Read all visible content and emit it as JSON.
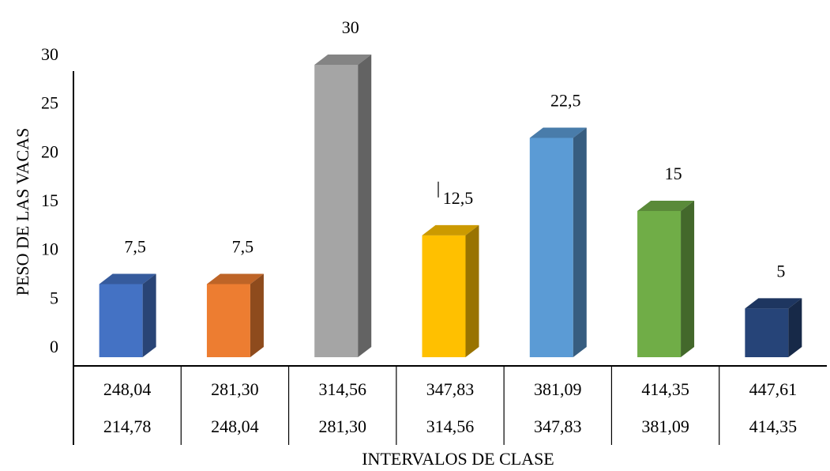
{
  "chart_data": {
    "type": "bar",
    "style": "3d-column",
    "title": "",
    "xlabel": "INTERVALOS DE CLASE",
    "ylabel": "PESO DE LAS VACAS",
    "ylim": [
      0,
      30
    ],
    "yticks": [
      "0",
      "5",
      "10",
      "15",
      "20",
      "25",
      "30"
    ],
    "grid": false,
    "legend": "none",
    "categories": [
      {
        "upper": "248,04",
        "lower": "214,78"
      },
      {
        "upper": "281,30",
        "lower": "248,04"
      },
      {
        "upper": "314,56",
        "lower": "281,30"
      },
      {
        "upper": "347,83",
        "lower": "314,56"
      },
      {
        "upper": "381,09",
        "lower": "347,83"
      },
      {
        "upper": "414,35",
        "lower": "381,09"
      },
      {
        "upper": "447,61",
        "lower": "414,35"
      }
    ],
    "values": [
      7.5,
      7.5,
      30,
      12.5,
      22.5,
      15,
      5
    ],
    "value_labels": [
      "7,5",
      "7,5",
      "30",
      "12,5",
      "22,5",
      "15",
      "5"
    ],
    "colors": [
      "#4472C4",
      "#ED7D31",
      "#A5A5A5",
      "#FFC000",
      "#5B9BD5",
      "#70AD47",
      "#264478"
    ]
  }
}
